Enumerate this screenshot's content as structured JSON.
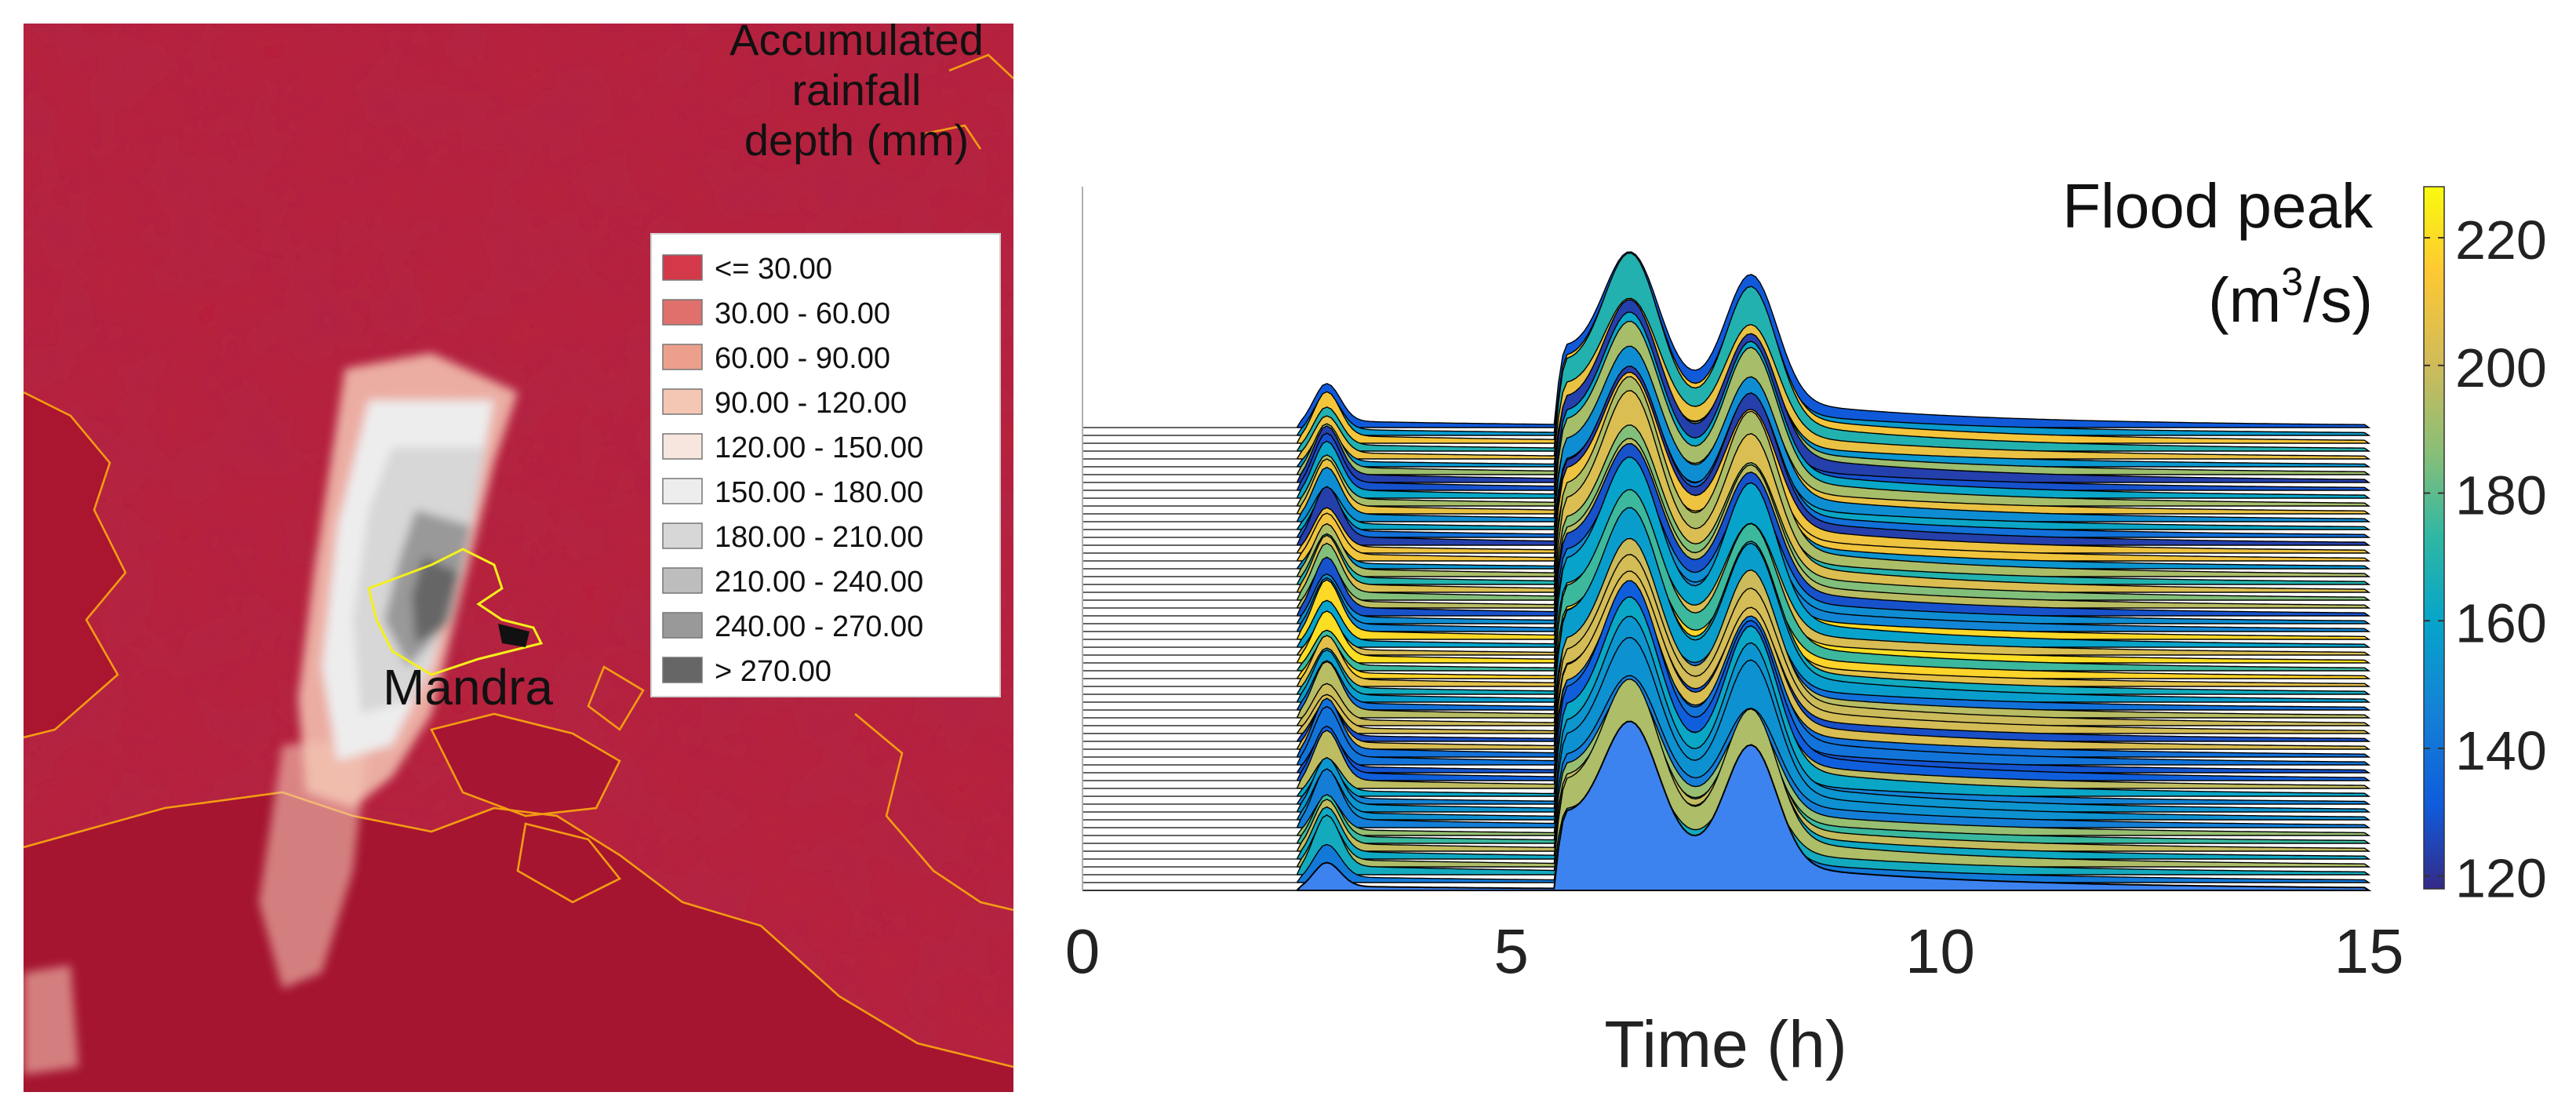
{
  "map": {
    "legend_title_lines": [
      "Accumulated",
      "rainfall",
      "depth (mm)"
    ],
    "legend_items": [
      {
        "label": "<= 30.00",
        "color": "#d4394a"
      },
      {
        "label": "30.00 - 60.00",
        "color": "#e0706c"
      },
      {
        "label": "60.00 - 90.00",
        "color": "#eca08c"
      },
      {
        "label": "90.00 - 120.00",
        "color": "#f4c6b4"
      },
      {
        "label": "120.00 - 150.00",
        "color": "#f6e6de"
      },
      {
        "label": "150.00 - 180.00",
        "color": "#ededed"
      },
      {
        "label": "180.00 - 210.00",
        "color": "#d7d7d7"
      },
      {
        "label": "210.00 - 240.00",
        "color": "#bdbdbd"
      },
      {
        "label": "240.00 - 270.00",
        "color": "#999999"
      },
      {
        "label": "> 270.00",
        "color": "#666666"
      }
    ],
    "place_label": "Mandra",
    "colors": {
      "land": "#b8213a",
      "sea": "#a51530",
      "coastline": "#f39c12",
      "catchment": "#f5f01a"
    }
  },
  "chart_data": {
    "type": "area",
    "description": "Stacked waterfall of flood hydrographs colored by flood peak",
    "xlabel": "Time (h)",
    "x_ticks": [
      0,
      5,
      10,
      15
    ],
    "xlim": [
      0,
      15
    ],
    "series_count": 60,
    "rain_onset_h": 2.5,
    "peak_times_h": [
      6.4,
      7.8
    ],
    "colorbar": {
      "title": "Flood peak",
      "unit_base": "(m",
      "unit_exp": "3",
      "unit_tail": "/s)",
      "ticks": [
        120,
        140,
        160,
        180,
        200,
        220
      ],
      "range": [
        118,
        228
      ],
      "colormap": "parula"
    },
    "front_hydrograph": {
      "peak": 145,
      "color": "#3c83f0"
    }
  }
}
